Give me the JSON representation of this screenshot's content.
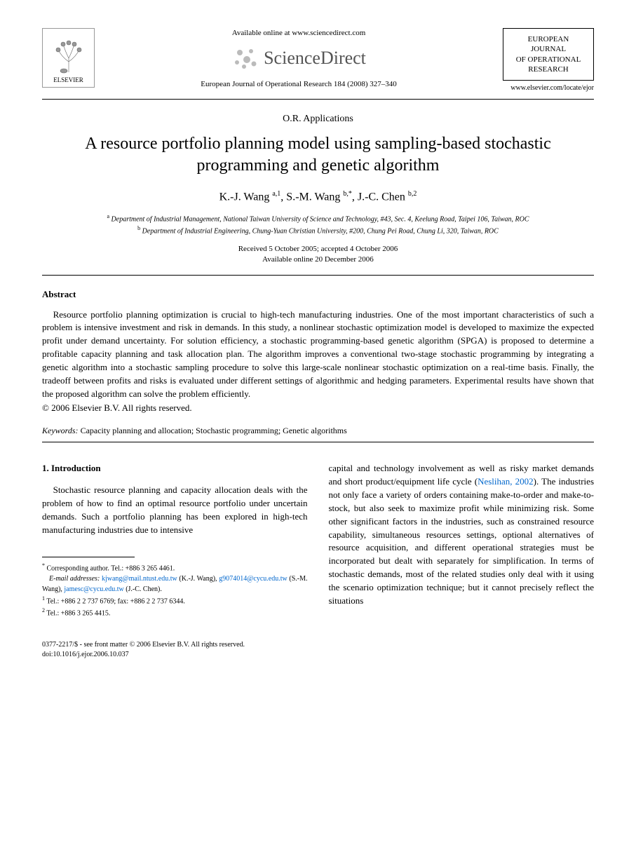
{
  "header": {
    "available_online": "Available online at www.sciencedirect.com",
    "sd_brand": "ScienceDirect",
    "journal_ref": "European Journal of Operational Research 184 (2008) 327–340",
    "publisher": "ELSEVIER",
    "journal_box_l1": "EUROPEAN",
    "journal_box_l2": "JOURNAL",
    "journal_box_l3": "OF OPERATIONAL",
    "journal_box_l4": "RESEARCH",
    "journal_url": "www.elsevier.com/locate/ejor"
  },
  "article": {
    "section": "O.R. Applications",
    "title": "A resource portfolio planning model using sampling-based stochastic programming and genetic algorithm",
    "authors_html": "K.-J. Wang <sup>a,1</sup>, S.-M. Wang <sup>b,*</sup>, J.-C. Chen <sup>b,2</sup>",
    "affil_a": "Department of Industrial Management, National Taiwan University of Science and Technology, #43, Sec. 4, Keelung Road, Taipei 106, Taiwan, ROC",
    "affil_b": "Department of Industrial Engineering, Chung-Yuan Christian University, #200, Chung Pei Road, Chung Li, 320, Taiwan, ROC",
    "received": "Received 5 October 2005; accepted 4 October 2006",
    "online": "Available online 20 December 2006"
  },
  "abstract": {
    "heading": "Abstract",
    "body": "Resource portfolio planning optimization is crucial to high-tech manufacturing industries. One of the most important characteristics of such a problem is intensive investment and risk in demands. In this study, a nonlinear stochastic optimization model is developed to maximize the expected profit under demand uncertainty. For solution efficiency, a stochastic programming-based genetic algorithm (SPGA) is proposed to determine a profitable capacity planning and task allocation plan. The algorithm improves a conventional two-stage stochastic programming by integrating a genetic algorithm into a stochastic sampling procedure to solve this large-scale nonlinear stochastic optimization on a real-time basis. Finally, the tradeoff between profits and risks is evaluated under different settings of algorithmic and hedging parameters. Experimental results have shown that the proposed algorithm can solve the problem efficiently.",
    "copyright": "© 2006 Elsevier B.V. All rights reserved."
  },
  "keywords": {
    "label": "Keywords:",
    "text": " Capacity planning and allocation; Stochastic programming; Genetic algorithms"
  },
  "intro": {
    "heading": "1. Introduction",
    "col1": "Stochastic resource planning and capacity allocation deals with the problem of how to find an optimal resource portfolio under uncertain demands. Such a portfolio planning has been explored in high-tech manufacturing industries due to intensive",
    "col2_pre": "capital and technology involvement as well as risky market demands and short product/equipment life cycle (",
    "col2_link": "Neslihan, 2002",
    "col2_post": "). The industries not only face a variety of orders containing make-to-order and make-to-stock, but also seek to maximize profit while minimizing risk. Some other significant factors in the industries, such as constrained resource capability, simultaneous resources settings, optional alternatives of resource acquisition, and different operational strategies must be incorporated but dealt with separately for simplification. In terms of stochastic demands, most of the related studies only deal with it using the scenario optimization technique; but it cannot precisely reflect the situations"
  },
  "footnotes": {
    "corr": "Corresponding author. Tel.: +886 3 265 4461.",
    "email_label": "E-mail addresses:",
    "email1": "kjwang@mail.ntust.edu.tw",
    "email1_who": " (K.-J. Wang), ",
    "email2": "g9074014@cycu.edu.tw",
    "email2_who": " (S.-M. Wang), ",
    "email3": "jamesc@cycu.edu.tw",
    "email3_who": " (J.-C. Chen).",
    "tel1": "Tel.: +886 2 2 737 6769; fax: +886 2 2 737 6344.",
    "tel2": "Tel.: +886 3 265 4415."
  },
  "footer": {
    "front_matter": "0377-2217/$ - see front matter © 2006 Elsevier B.V. All rights reserved.",
    "doi": "doi:10.1016/j.ejor.2006.10.037"
  }
}
